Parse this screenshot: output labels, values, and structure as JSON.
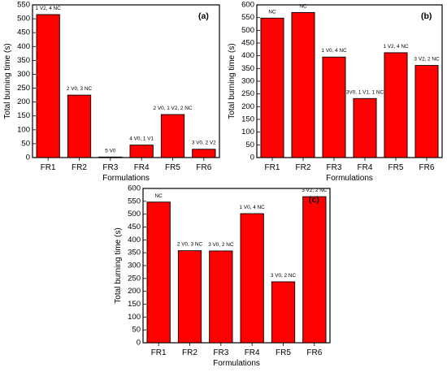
{
  "chart_data": [
    {
      "type": "bar",
      "panel_label": "(a)",
      "categories": [
        "FR1",
        "FR2",
        "FR3",
        "FR4",
        "FR5",
        "FR6"
      ],
      "values": [
        515,
        225,
        2,
        45,
        155,
        30
      ],
      "data_labels": [
        "1 V2, 4 NC",
        "2 V0, 3 NC",
        "5 V0",
        "4 V0, 1 V1",
        "2 V0, 1 V2, 2 NC",
        "3 V0, 2 V2"
      ],
      "xlabel": "Formulations",
      "ylabel": "Total burning time (s)",
      "ylim": [
        0,
        550
      ],
      "yticks": [
        0,
        50,
        100,
        150,
        200,
        250,
        300,
        350,
        400,
        450,
        500,
        550
      ],
      "bar_color": "#ff0000",
      "grid": false
    },
    {
      "type": "bar",
      "panel_label": "(b)",
      "categories": [
        "FR1",
        "FR2",
        "FR3",
        "FR4",
        "FR5",
        "FR6"
      ],
      "values": [
        548,
        570,
        395,
        232,
        412,
        362
      ],
      "data_labels": [
        "NC",
        "NC",
        "1 V0, 4 NC",
        "3V0, 1 V1, 1 NC",
        "1 V2, 4 NC",
        "3 V2, 2 NC"
      ],
      "xlabel": "Formulations",
      "ylabel": "Total burning time (s)",
      "ylim": [
        0,
        600
      ],
      "yticks": [
        0,
        50,
        100,
        150,
        200,
        250,
        300,
        350,
        400,
        450,
        500,
        550,
        600
      ],
      "bar_color": "#ff0000",
      "grid": false
    },
    {
      "type": "bar",
      "panel_label": "(c)",
      "categories": [
        "FR1",
        "FR2",
        "FR3",
        "FR4",
        "FR5",
        "FR6"
      ],
      "values": [
        547,
        358,
        357,
        502,
        237,
        568
      ],
      "data_labels": [
        "NC",
        "2 V0, 3 NC",
        "3 V0, 2 NC",
        "1 V0, 4 NC",
        "3 V0, 2 NC",
        "3 V2, 2 NC"
      ],
      "xlabel": "Formulations",
      "ylabel": "Total burning time (s)",
      "ylim": [
        0,
        600
      ],
      "yticks": [
        0,
        50,
        100,
        150,
        200,
        250,
        300,
        350,
        400,
        450,
        500,
        550,
        600
      ],
      "bar_color": "#ff0000",
      "grid": false
    }
  ]
}
